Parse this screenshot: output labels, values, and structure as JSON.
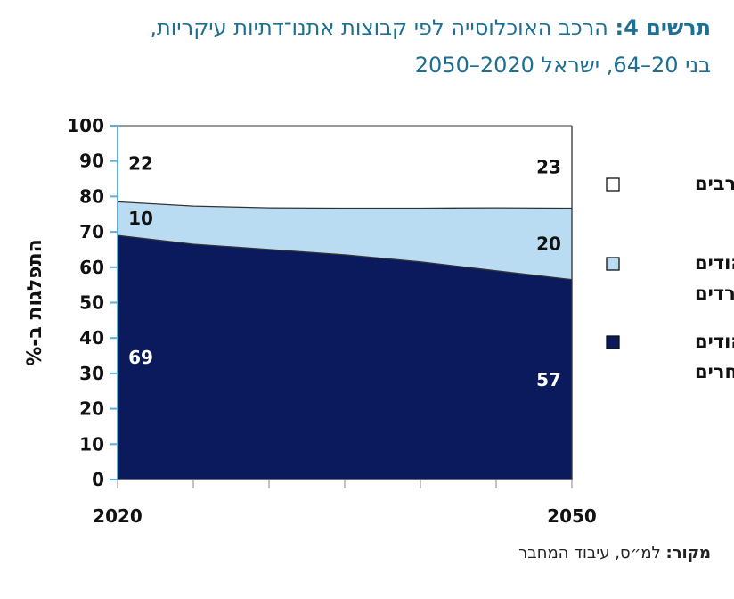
{
  "title": {
    "line1_bold": "תרשים 4:",
    "line1_rest": " הרכב האוכלוסייה לפי קבוצות אתנו־דתיות עיקריות,",
    "line2": "בני 20–64, ישראל 2020–2050"
  },
  "source": {
    "label": "מקור:",
    "text": " למ״ס, עיבוד המחבר"
  },
  "colors": {
    "arabs": "#ffffff",
    "haredim": "#b9dcf2",
    "other_jews": "#0b1a5c",
    "axis": "#5aaee0"
  },
  "chart_data": {
    "type": "area",
    "ylabel": "התפלגות ב-%",
    "ylim": [
      0,
      100
    ],
    "yticks": [
      0,
      10,
      20,
      30,
      40,
      50,
      60,
      70,
      80,
      90,
      100
    ],
    "x": [
      2020,
      2025,
      2030,
      2035,
      2040,
      2045,
      2050
    ],
    "xtick_labels": [
      "2020",
      "2050"
    ],
    "series": [
      {
        "name": "יהודים אחרים",
        "values": [
          69,
          66.5,
          65,
          63.5,
          61.5,
          59,
          56.5
        ],
        "color": "#0b1a5c"
      },
      {
        "name": "יהודים חרדים",
        "values": [
          9.5,
          10.8,
          11.8,
          13.2,
          15.2,
          17.8,
          20.2
        ],
        "color": "#b9dcf2"
      },
      {
        "name": "ערבים",
        "values": [
          21.5,
          22.7,
          23.2,
          23.3,
          23.3,
          23.2,
          23.3
        ],
        "color": "#ffffff"
      }
    ],
    "data_labels": {
      "start": [
        "69",
        "10",
        "22"
      ],
      "end": [
        "57",
        "20",
        "23"
      ]
    },
    "legend": [
      {
        "lines": [
          "ערבים"
        ],
        "color": "#ffffff"
      },
      {
        "lines": [
          "יהודים",
          "חרדים"
        ],
        "color": "#b9dcf2"
      },
      {
        "lines": [
          "יהודים",
          "אחרים"
        ],
        "color": "#0b1a5c"
      }
    ],
    "legend_position": "right"
  }
}
